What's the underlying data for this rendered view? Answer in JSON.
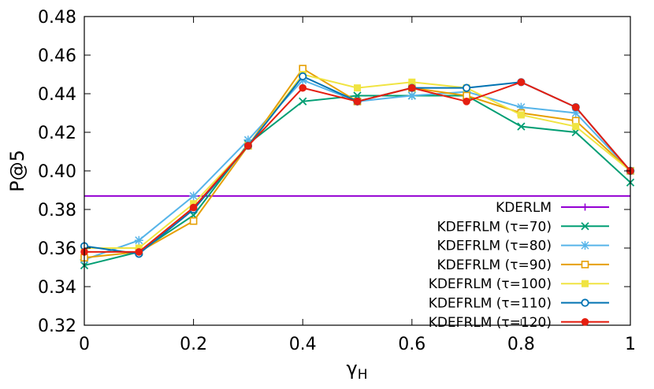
{
  "chart_data": {
    "type": "line",
    "title": "",
    "xlabel": "γ",
    "xlabel_sub": "H",
    "ylabel": "P@5",
    "xlim": [
      0,
      1
    ],
    "ylim": [
      0.32,
      0.48
    ],
    "xticks": [
      0,
      0.2,
      0.4,
      0.6,
      0.8,
      1
    ],
    "xtick_labels": [
      "0",
      "0.2",
      "0.4",
      "0.6",
      "0.8",
      "1"
    ],
    "yticks": [
      0.32,
      0.34,
      0.36,
      0.38,
      0.4,
      0.42,
      0.44,
      0.46,
      0.48
    ],
    "ytick_labels": [
      "0.32",
      "0.34",
      "0.36",
      "0.38",
      "0.40",
      "0.42",
      "0.44",
      "0.46",
      "0.48"
    ],
    "grid": false,
    "legend_position": "bottom-right",
    "x": [
      0,
      0.1,
      0.2,
      0.3,
      0.4,
      0.5,
      0.6,
      0.7,
      0.8,
      0.9,
      1.0
    ],
    "baseline": {
      "name": "KDERLM",
      "value": 0.387,
      "color": "#9400d3",
      "marker": "plus"
    },
    "series": [
      {
        "name": "KDEFRLM (τ=70)",
        "color": "#009e73",
        "marker": "x",
        "values": [
          0.351,
          0.358,
          0.377,
          0.414,
          0.436,
          0.439,
          0.439,
          0.439,
          0.423,
          0.42,
          0.394
        ]
      },
      {
        "name": "KDEFRLM (τ=80)",
        "color": "#56b4e9",
        "marker": "star",
        "values": [
          0.354,
          0.364,
          0.387,
          0.416,
          0.447,
          0.436,
          0.439,
          0.441,
          0.433,
          0.43,
          0.4
        ]
      },
      {
        "name": "KDEFRLM (τ=90)",
        "color": "#e69f00",
        "marker": "square-open",
        "values": [
          0.355,
          0.358,
          0.374,
          0.413,
          0.453,
          0.436,
          0.443,
          0.439,
          0.43,
          0.426,
          0.4
        ]
      },
      {
        "name": "KDEFRLM (τ=100)",
        "color": "#f0e442",
        "marker": "square-filled",
        "values": [
          0.36,
          0.36,
          0.383,
          0.413,
          0.45,
          0.443,
          0.446,
          0.443,
          0.429,
          0.423,
          0.4
        ]
      },
      {
        "name": "KDEFRLM (τ=110)",
        "color": "#0072b2",
        "marker": "circle-open",
        "values": [
          0.361,
          0.357,
          0.38,
          0.413,
          0.449,
          0.436,
          0.443,
          0.443,
          0.446,
          0.433,
          0.4
        ]
      },
      {
        "name": "KDEFRLM (τ=120)",
        "color": "#e51e10",
        "marker": "circle-filled",
        "values": [
          0.358,
          0.358,
          0.381,
          0.413,
          0.443,
          0.436,
          0.443,
          0.436,
          0.446,
          0.433,
          0.4
        ]
      }
    ]
  }
}
